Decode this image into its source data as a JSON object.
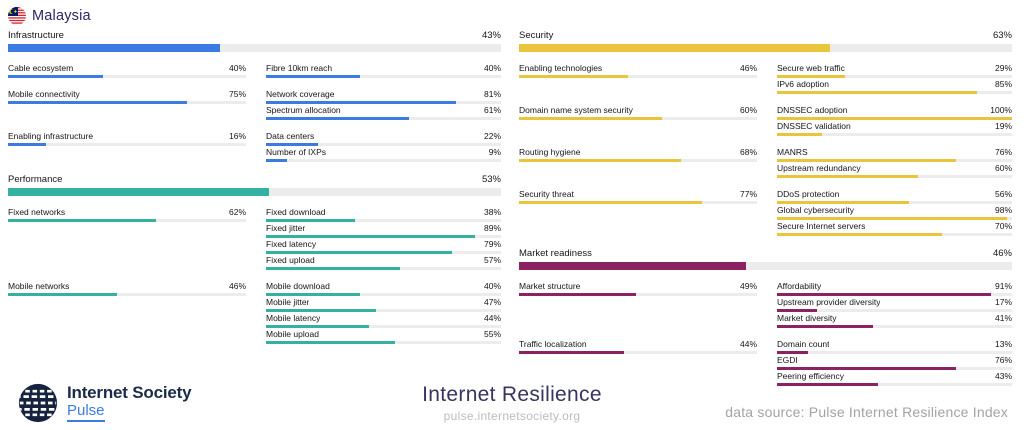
{
  "header": {
    "country": "Malaysia",
    "flag_icon": "malaysia-flag"
  },
  "chart_data": [
    {
      "type": "bar",
      "id": "infrastructure",
      "title": "Infrastructure",
      "value_label": "43%",
      "value_pct": 43,
      "color": "#3c7ce2",
      "column": "left",
      "groups": [
        {
          "pillar": {
            "label": "Cable ecosystem",
            "value_label": "40%",
            "value_pct": 40
          },
          "metrics": [
            {
              "label": "Fibre 10km reach",
              "value_label": "40%",
              "value_pct": 40
            }
          ]
        },
        {
          "pillar": {
            "label": "Mobile connectivity",
            "value_label": "75%",
            "value_pct": 75
          },
          "metrics": [
            {
              "label": "Network coverage",
              "value_label": "81%",
              "value_pct": 81
            },
            {
              "label": "Spectrum allocation",
              "value_label": "61%",
              "value_pct": 61
            }
          ]
        },
        {
          "pillar": {
            "label": "Enabling infrastructure",
            "value_label": "16%",
            "value_pct": 16
          },
          "metrics": [
            {
              "label": "Data centers",
              "value_label": "22%",
              "value_pct": 22
            },
            {
              "label": "Number of IXPs",
              "value_label": "9%",
              "value_pct": 9
            }
          ]
        }
      ]
    },
    {
      "type": "bar",
      "id": "performance",
      "title": "Performance",
      "value_label": "53%",
      "value_pct": 53,
      "color": "#34b2a1",
      "column": "left",
      "groups": [
        {
          "pillar": {
            "label": "Fixed networks",
            "value_label": "62%",
            "value_pct": 62
          },
          "metrics": [
            {
              "label": "Fixed download",
              "value_label": "38%",
              "value_pct": 38
            },
            {
              "label": "Fixed jitter",
              "value_label": "89%",
              "value_pct": 89
            },
            {
              "label": "Fixed latency",
              "value_label": "79%",
              "value_pct": 79
            },
            {
              "label": "Fixed upload",
              "value_label": "57%",
              "value_pct": 57
            }
          ]
        },
        {
          "pillar": {
            "label": "Mobile networks",
            "value_label": "46%",
            "value_pct": 46
          },
          "metrics": [
            {
              "label": "Mobile download",
              "value_label": "40%",
              "value_pct": 40
            },
            {
              "label": "Mobile jitter",
              "value_label": "47%",
              "value_pct": 47
            },
            {
              "label": "Mobile latency",
              "value_label": "44%",
              "value_pct": 44
            },
            {
              "label": "Mobile upload",
              "value_label": "55%",
              "value_pct": 55
            }
          ]
        }
      ]
    },
    {
      "type": "bar",
      "id": "security",
      "title": "Security",
      "value_label": "63%",
      "value_pct": 63,
      "color": "#e9c43c",
      "column": "right",
      "groups": [
        {
          "pillar": {
            "label": "Enabling technologies",
            "value_label": "46%",
            "value_pct": 46
          },
          "metrics": [
            {
              "label": "Secure web traffic",
              "value_label": "29%",
              "value_pct": 29
            },
            {
              "label": "IPv6 adoption",
              "value_label": "85%",
              "value_pct": 85
            }
          ]
        },
        {
          "pillar": {
            "label": "Domain name system security",
            "value_label": "60%",
            "value_pct": 60
          },
          "metrics": [
            {
              "label": "DNSSEC adoption",
              "value_label": "100%",
              "value_pct": 100
            },
            {
              "label": "DNSSEC validation",
              "value_label": "19%",
              "value_pct": 19
            }
          ]
        },
        {
          "pillar": {
            "label": "Routing hygiene",
            "value_label": "68%",
            "value_pct": 68
          },
          "metrics": [
            {
              "label": "MANRS",
              "value_label": "76%",
              "value_pct": 76
            },
            {
              "label": "Upstream redundancy",
              "value_label": "60%",
              "value_pct": 60
            }
          ]
        },
        {
          "pillar": {
            "label": "Security threat",
            "value_label": "77%",
            "value_pct": 77
          },
          "metrics": [
            {
              "label": "DDoS protection",
              "value_label": "56%",
              "value_pct": 56
            },
            {
              "label": "Global cybersecurity",
              "value_label": "98%",
              "value_pct": 98
            },
            {
              "label": "Secure Internet servers",
              "value_label": "70%",
              "value_pct": 70
            }
          ]
        }
      ]
    },
    {
      "type": "bar",
      "id": "market-readiness",
      "title": "Market readiness",
      "value_label": "46%",
      "value_pct": 46,
      "color": "#8d2263",
      "column": "right",
      "groups": [
        {
          "pillar": {
            "label": "Market structure",
            "value_label": "49%",
            "value_pct": 49
          },
          "metrics": [
            {
              "label": "Affordability",
              "value_label": "91%",
              "value_pct": 91
            },
            {
              "label": "Upstream provider diversity",
              "value_label": "17%",
              "value_pct": 17
            },
            {
              "label": "Market diversity",
              "value_label": "41%",
              "value_pct": 41
            }
          ]
        },
        {
          "pillar": {
            "label": "Traffic localization",
            "value_label": "44%",
            "value_pct": 44
          },
          "metrics": [
            {
              "label": "Domain count",
              "value_label": "13%",
              "value_pct": 13
            },
            {
              "label": "EGDI",
              "value_label": "76%",
              "value_pct": 76
            },
            {
              "label": "Peering efficiency",
              "value_label": "43%",
              "value_pct": 43
            }
          ]
        }
      ]
    }
  ],
  "footer": {
    "logo_name": "Internet Society",
    "logo_product": "Pulse",
    "title": "Internet Resilience",
    "url": "pulse.internetsociety.org",
    "data_source": "data source: Pulse Internet Resilience Index"
  },
  "colors": {
    "infrastructure": "#3c7ce2",
    "performance": "#34b2a1",
    "security": "#e9c43c",
    "market_readiness": "#8d2263",
    "bar_track": "#ececec",
    "label_text": "#15151a",
    "country_text": "#2b2668",
    "brand_navy": "#1a2b49",
    "pulse_blue": "#3c7ce2",
    "title_text": "#373460",
    "muted_gray": "#a3a3a3"
  }
}
